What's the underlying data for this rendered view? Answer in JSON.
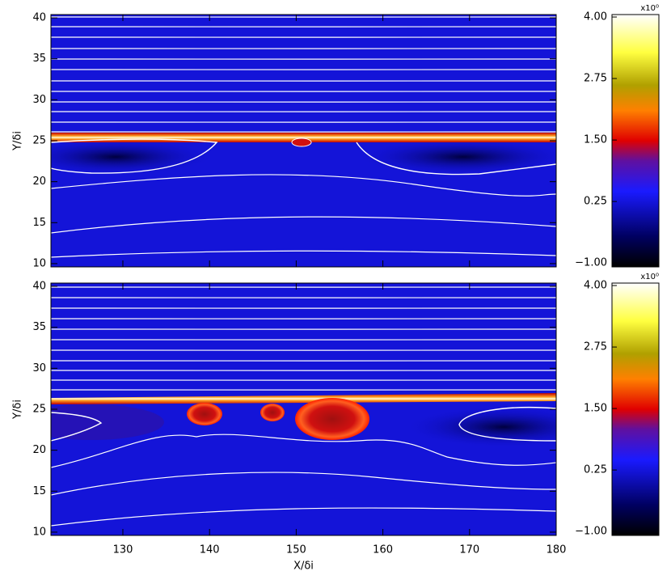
{
  "chart_data": [
    {
      "type": "heatmap",
      "ylabel": "Y/δi",
      "xlim": [
        121.7,
        180
      ],
      "xticks": [
        130,
        140,
        150,
        160,
        170,
        180
      ],
      "xtick_labels": false,
      "ylim": [
        9.6,
        40.4
      ],
      "yticks": [
        10,
        15,
        20,
        25,
        30,
        35,
        40
      ],
      "colorbar_label": "x10⁰",
      "clim": [
        -1.08,
        4.05
      ],
      "cticks": [
        {
          "value": -1,
          "label": "−1.00"
        },
        {
          "value": 0.25,
          "label": "0.25"
        },
        {
          "value": 1.5,
          "label": "1.50"
        },
        {
          "value": 2.75,
          "label": "2.75"
        },
        {
          "value": 4,
          "label": "4.00"
        }
      ]
    },
    {
      "type": "heatmap",
      "ylabel": "Y/δi",
      "xlabel": "X/δi",
      "xlim": [
        121.7,
        180
      ],
      "xticks": [
        130,
        140,
        150,
        160,
        170,
        180
      ],
      "xtick_labels": true,
      "ylim": [
        9.6,
        40.4
      ],
      "yticks": [
        10,
        15,
        20,
        25,
        30,
        35,
        40
      ],
      "colorbar_label": "x10⁰",
      "clim": [
        -1.08,
        4.05
      ],
      "cticks": [
        {
          "value": -1,
          "label": "−1.00"
        },
        {
          "value": 0.25,
          "label": "0.25"
        },
        {
          "value": 1.5,
          "label": "1.50"
        },
        {
          "value": 2.75,
          "label": "2.75"
        },
        {
          "value": 4,
          "label": "4.00"
        }
      ]
    }
  ]
}
